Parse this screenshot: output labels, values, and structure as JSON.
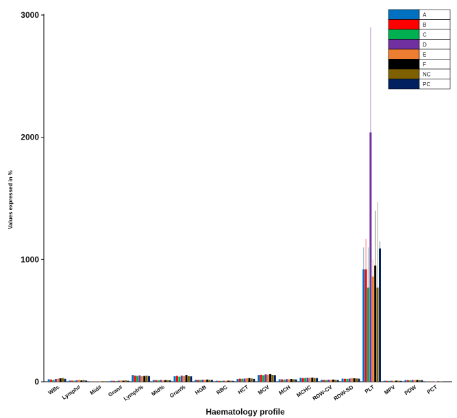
{
  "chart_data": {
    "type": "bar",
    "title": "",
    "xlabel": "Haematology profile",
    "ylabel": "Values expressed in %",
    "ylim": [
      0,
      3000
    ],
    "yticks": [
      "0",
      "1000",
      "2000",
      "3000"
    ],
    "grid": false,
    "legend_position": "top-right",
    "categories": [
      "WBc",
      "Lymph#",
      "Mid#",
      "Gran#",
      "Lymph%",
      "Mid%",
      "Gran%",
      "HGB",
      "RBC",
      "HCT",
      "MCV",
      "MCH",
      "MCHC",
      "RDW-CV",
      "RDW-SD",
      "PLT",
      "MPV",
      "PDW",
      "PCT"
    ],
    "series": [
      {
        "name": "A",
        "color": "#0070c0",
        "values": [
          20,
          10,
          3,
          8,
          55,
          14,
          45,
          16,
          8,
          22,
          55,
          20,
          32,
          16,
          25,
          920,
          8,
          14,
          3
        ]
      },
      {
        "name": "B",
        "color": "#ff0000",
        "values": [
          18,
          9,
          3,
          7,
          50,
          13,
          48,
          15,
          7,
          25,
          57,
          19,
          30,
          15,
          24,
          920,
          7,
          13,
          3
        ]
      },
      {
        "name": "C",
        "color": "#00b050",
        "values": [
          15,
          8,
          2,
          6,
          48,
          12,
          42,
          14,
          7,
          24,
          53,
          18,
          31,
          14,
          23,
          770,
          7,
          12,
          2
        ]
      },
      {
        "name": "D",
        "color": "#7030a0",
        "values": [
          22,
          12,
          3,
          9,
          52,
          15,
          50,
          17,
          8,
          26,
          60,
          21,
          33,
          17,
          26,
          2040,
          8,
          15,
          3
        ]
      },
      {
        "name": "E",
        "color": "#ed7d31",
        "values": [
          25,
          15,
          4,
          10,
          45,
          12,
          47,
          16,
          8,
          28,
          58,
          20,
          32,
          16,
          30,
          860,
          8,
          14,
          3
        ]
      },
      {
        "name": "F",
        "color": "#000000",
        "values": [
          28,
          11,
          3,
          9,
          47,
          14,
          55,
          18,
          9,
          30,
          62,
          22,
          34,
          18,
          28,
          950,
          9,
          15,
          3
        ]
      },
      {
        "name": "NC",
        "color": "#7f6000",
        "values": [
          30,
          14,
          4,
          11,
          50,
          13,
          46,
          16,
          8,
          27,
          56,
          20,
          31,
          15,
          27,
          770,
          8,
          14,
          3
        ]
      },
      {
        "name": "PC",
        "color": "#002060",
        "values": [
          24,
          10,
          3,
          8,
          46,
          12,
          44,
          15,
          7,
          23,
          54,
          19,
          30,
          14,
          25,
          1090,
          7,
          13,
          2
        ]
      }
    ],
    "error_bars": {
      "PLT": [
        1100,
        1170,
        1100,
        2900,
        1000,
        1400,
        1470,
        1150
      ]
    }
  }
}
